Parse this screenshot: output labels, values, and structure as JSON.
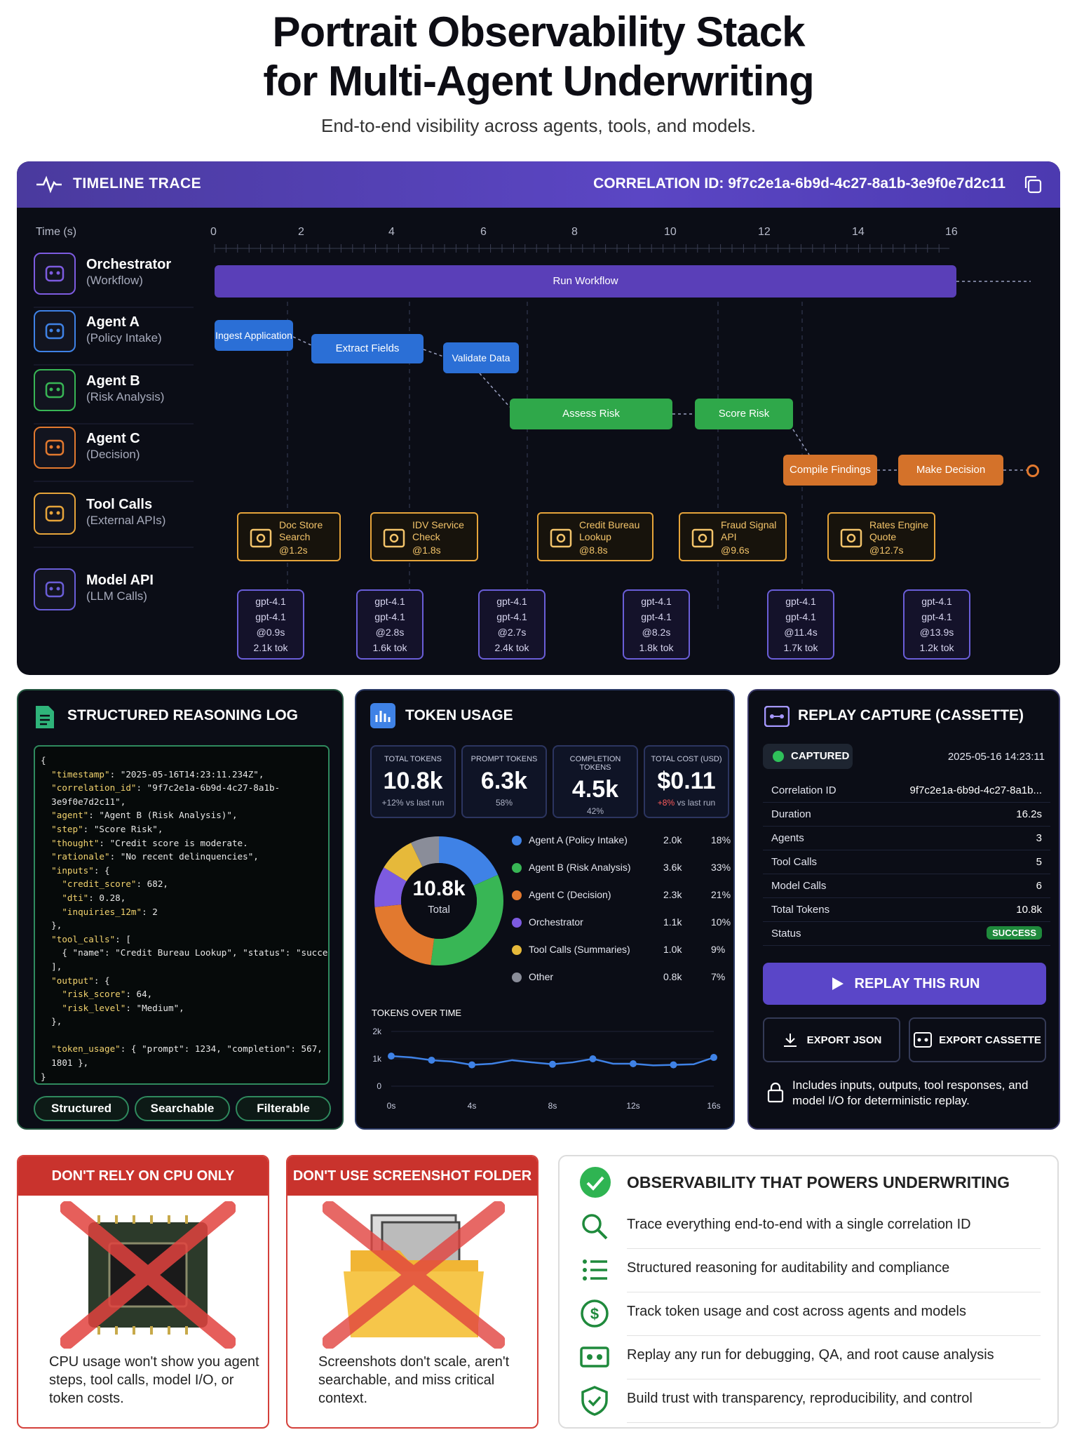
{
  "header": {
    "title_line1": "Portrait Observability Stack",
    "title_line2": "for Multi-Agent Underwriting",
    "subtitle": "End-to-end visibility across agents, tools, and models."
  },
  "timeline": {
    "title": "TIMELINE TRACE",
    "correlation": "CORRELATION ID: 9f7c2e1a-6b9d-4c27-8a1b-3e9f0e7d2c11",
    "axis_label": "Time (s)",
    "ticks": [
      "0",
      "2",
      "4",
      "6",
      "8",
      "10",
      "12",
      "14",
      "16"
    ],
    "rows": [
      {
        "name": "Orchestrator",
        "sub": "(Workflow)",
        "color": "#7d5be0"
      },
      {
        "name": "Agent A",
        "sub": "(Policy Intake)",
        "color": "#3f82e6"
      },
      {
        "name": "Agent B",
        "sub": "(Risk Analysis)",
        "color": "#38b655"
      },
      {
        "name": "Agent C",
        "sub": "(Decision)",
        "color": "#e2792f"
      },
      {
        "name": "Tool Calls",
        "sub": "(External APIs)",
        "color": "#e6a43a"
      },
      {
        "name": "Model API",
        "sub": "(LLM Calls)",
        "color": "#6a5ed8"
      }
    ],
    "bars": {
      "run": "Run Workflow",
      "ingest": "Ingest Application",
      "extract": "Extract Fields",
      "validate": "Validate Data",
      "assess": "Assess Risk",
      "score": "Score Risk",
      "compile": "Compile Findings",
      "decide": "Make Decision"
    },
    "tools": [
      {
        "name": "Doc Store Search",
        "t": "@1.2s",
        "icon": "search-icon"
      },
      {
        "name": "IDV Service Check",
        "t": "@1.8s",
        "icon": "shield-icon"
      },
      {
        "name": "Credit Bureau Lookup",
        "t": "@8.8s",
        "icon": "credit-card-icon"
      },
      {
        "name": "Fraud Signal API",
        "t": "@9.6s",
        "icon": "lock-icon"
      },
      {
        "name": "Rates Engine Quote",
        "t": "@12.7s",
        "icon": "calculator-icon"
      }
    ],
    "models": [
      {
        "l1": "gpt-4.1",
        "l2": "gpt-4.1",
        "t": "@0.9s",
        "tok": "2.1k tok"
      },
      {
        "l1": "gpt-4.1",
        "l2": "gpt-4.1",
        "t": "@2.8s",
        "tok": "1.6k tok"
      },
      {
        "l1": "gpt-4.1",
        "l2": "gpt-4.1",
        "t": "@2.7s",
        "tok": "2.4k tok"
      },
      {
        "l1": "gpt-4.1",
        "l2": "gpt-4.1",
        "t": "@8.2s",
        "tok": "1.8k tok"
      },
      {
        "l1": "gpt-4.1",
        "l2": "gpt-4.1",
        "t": "@11.4s",
        "tok": "1.7k tok"
      },
      {
        "l1": "gpt-4.1",
        "l2": "gpt-4.1",
        "t": "@13.9s",
        "tok": "1.2k tok"
      }
    ]
  },
  "log": {
    "title": "STRUCTURED REASONING LOG",
    "lines": [
      "{",
      "  \"timestamp\": \"2025-05-16T14:23:11.234Z\",",
      "  \"correlation_id\": \"9f7c2e1a-6b9d-4c27-8a1b-",
      "  3e9f0e7d2c11\",",
      "  \"agent\": \"Agent B (Risk Analysis)\",",
      "  \"step\": \"Score Risk\",",
      "  \"thought\": \"Credit score is moderate.",
      "  \"rationale\": \"No recent delinquencies\",",
      "  \"inputs\": {",
      "    \"credit_score\": 682,",
      "    \"dti\": 0.28,",
      "    \"inquiries_12m\": 2",
      "  },",
      "  \"tool_calls\": [",
      "    { \"name\": \"Credit Bureau Lookup\", \"status\": \"success\" }",
      "  ],",
      "  \"output\": {",
      "    \"risk_score\": 64,",
      "    \"risk_level\": \"Medium\",",
      "  },",
      "",
      "  \"token_usage\": { \"prompt\": 1234, \"completion\": 567, \"total\":",
      "  1801 },",
      "}"
    ],
    "tags": [
      "Structured",
      "Searchable",
      "Filterable"
    ]
  },
  "tokens": {
    "title": "TOKEN USAGE",
    "stats": [
      {
        "label": "TOTAL TOKENS",
        "value": "10.8k",
        "delta": "+12% vs last run"
      },
      {
        "label": "PROMPT TOKENS",
        "value": "6.3k",
        "delta": "58%"
      },
      {
        "label": "COMPLETION TOKENS",
        "value": "4.5k",
        "delta": "42%"
      },
      {
        "label": "TOTAL COST (USD)",
        "value": "$0.11",
        "delta_hi": "+8%",
        "delta": " vs last run"
      }
    ],
    "donut_value": "10.8k",
    "donut_label": "Total",
    "legend": [
      {
        "name": "Agent A (Policy Intake)",
        "value": "2.0k",
        "pct": "18%",
        "share": 18,
        "color": "#3f82e6"
      },
      {
        "name": "Agent B (Risk Analysis)",
        "value": "3.6k",
        "pct": "33%",
        "share": 33,
        "color": "#38b655"
      },
      {
        "name": "Agent C (Decision)",
        "value": "2.3k",
        "pct": "21%",
        "share": 21,
        "color": "#e2792f"
      },
      {
        "name": "Orchestrator",
        "value": "1.1k",
        "pct": "10%",
        "share": 10,
        "color": "#7d5be0"
      },
      {
        "name": "Tool Calls (Summaries)",
        "value": "1.0k",
        "pct": "9%",
        "share": 9,
        "color": "#e6b93a"
      },
      {
        "name": "Other",
        "value": "0.8k",
        "pct": "7%",
        "share": 7,
        "color": "#8a8d99"
      }
    ],
    "chart_data": {
      "type": "line",
      "title": "TOKENS OVER TIME",
      "x": [
        0,
        1,
        2,
        3,
        4,
        5,
        6,
        7,
        8,
        9,
        10,
        11,
        12,
        13,
        14,
        15,
        16
      ],
      "values": [
        1100,
        1050,
        950,
        900,
        780,
        820,
        950,
        870,
        800,
        870,
        1000,
        820,
        820,
        760,
        780,
        800,
        1050
      ],
      "xticks": [
        "0s",
        "4s",
        "8s",
        "12s",
        "16s"
      ],
      "yticks": [
        "0",
        "1k",
        "2k"
      ],
      "ylim": [
        0,
        2000
      ]
    }
  },
  "replay": {
    "title": "REPLAY CAPTURE (CASSETTE)",
    "badge": "CAPTURED",
    "time": "2025-05-16 14:23:11",
    "rows": [
      {
        "k": "Correlation ID",
        "v": "9f7c2e1a-6b9d-4c27-8a1b..."
      },
      {
        "k": "Duration",
        "v": "16.2s"
      },
      {
        "k": "Agents",
        "v": "3"
      },
      {
        "k": "Tool Calls",
        "v": "5"
      },
      {
        "k": "Model Calls",
        "v": "6"
      },
      {
        "k": "Total Tokens",
        "v": "10.8k"
      },
      {
        "k": "Status",
        "v": "SUCCESS"
      }
    ],
    "replay_btn": "REPLAY THIS RUN",
    "export_json": "EXPORT JSON",
    "export_cassette": "EXPORT CASSETTE",
    "note": "Includes inputs, outputs, tool responses, and model I/O for deterministic replay."
  },
  "dont1": {
    "title": "DON'T RELY ON CPU ONLY",
    "text": "CPU usage won't show you agent steps, tool calls, model I/O, or token costs."
  },
  "dont2": {
    "title": "DON'T USE SCREENSHOT FOLDER",
    "text": "Screenshots don't scale, aren't searchable, and miss critical context."
  },
  "obs": {
    "title": "OBSERVABILITY THAT POWERS UNDERWRITING",
    "items": [
      "Trace everything end-to-end with a single correlation ID",
      "Structured reasoning for auditability and compliance",
      "Track token usage and cost across agents and models",
      "Replay any run for debugging, QA, and root cause analysis",
      "Build trust with transparency, reproducibility, and control"
    ]
  }
}
